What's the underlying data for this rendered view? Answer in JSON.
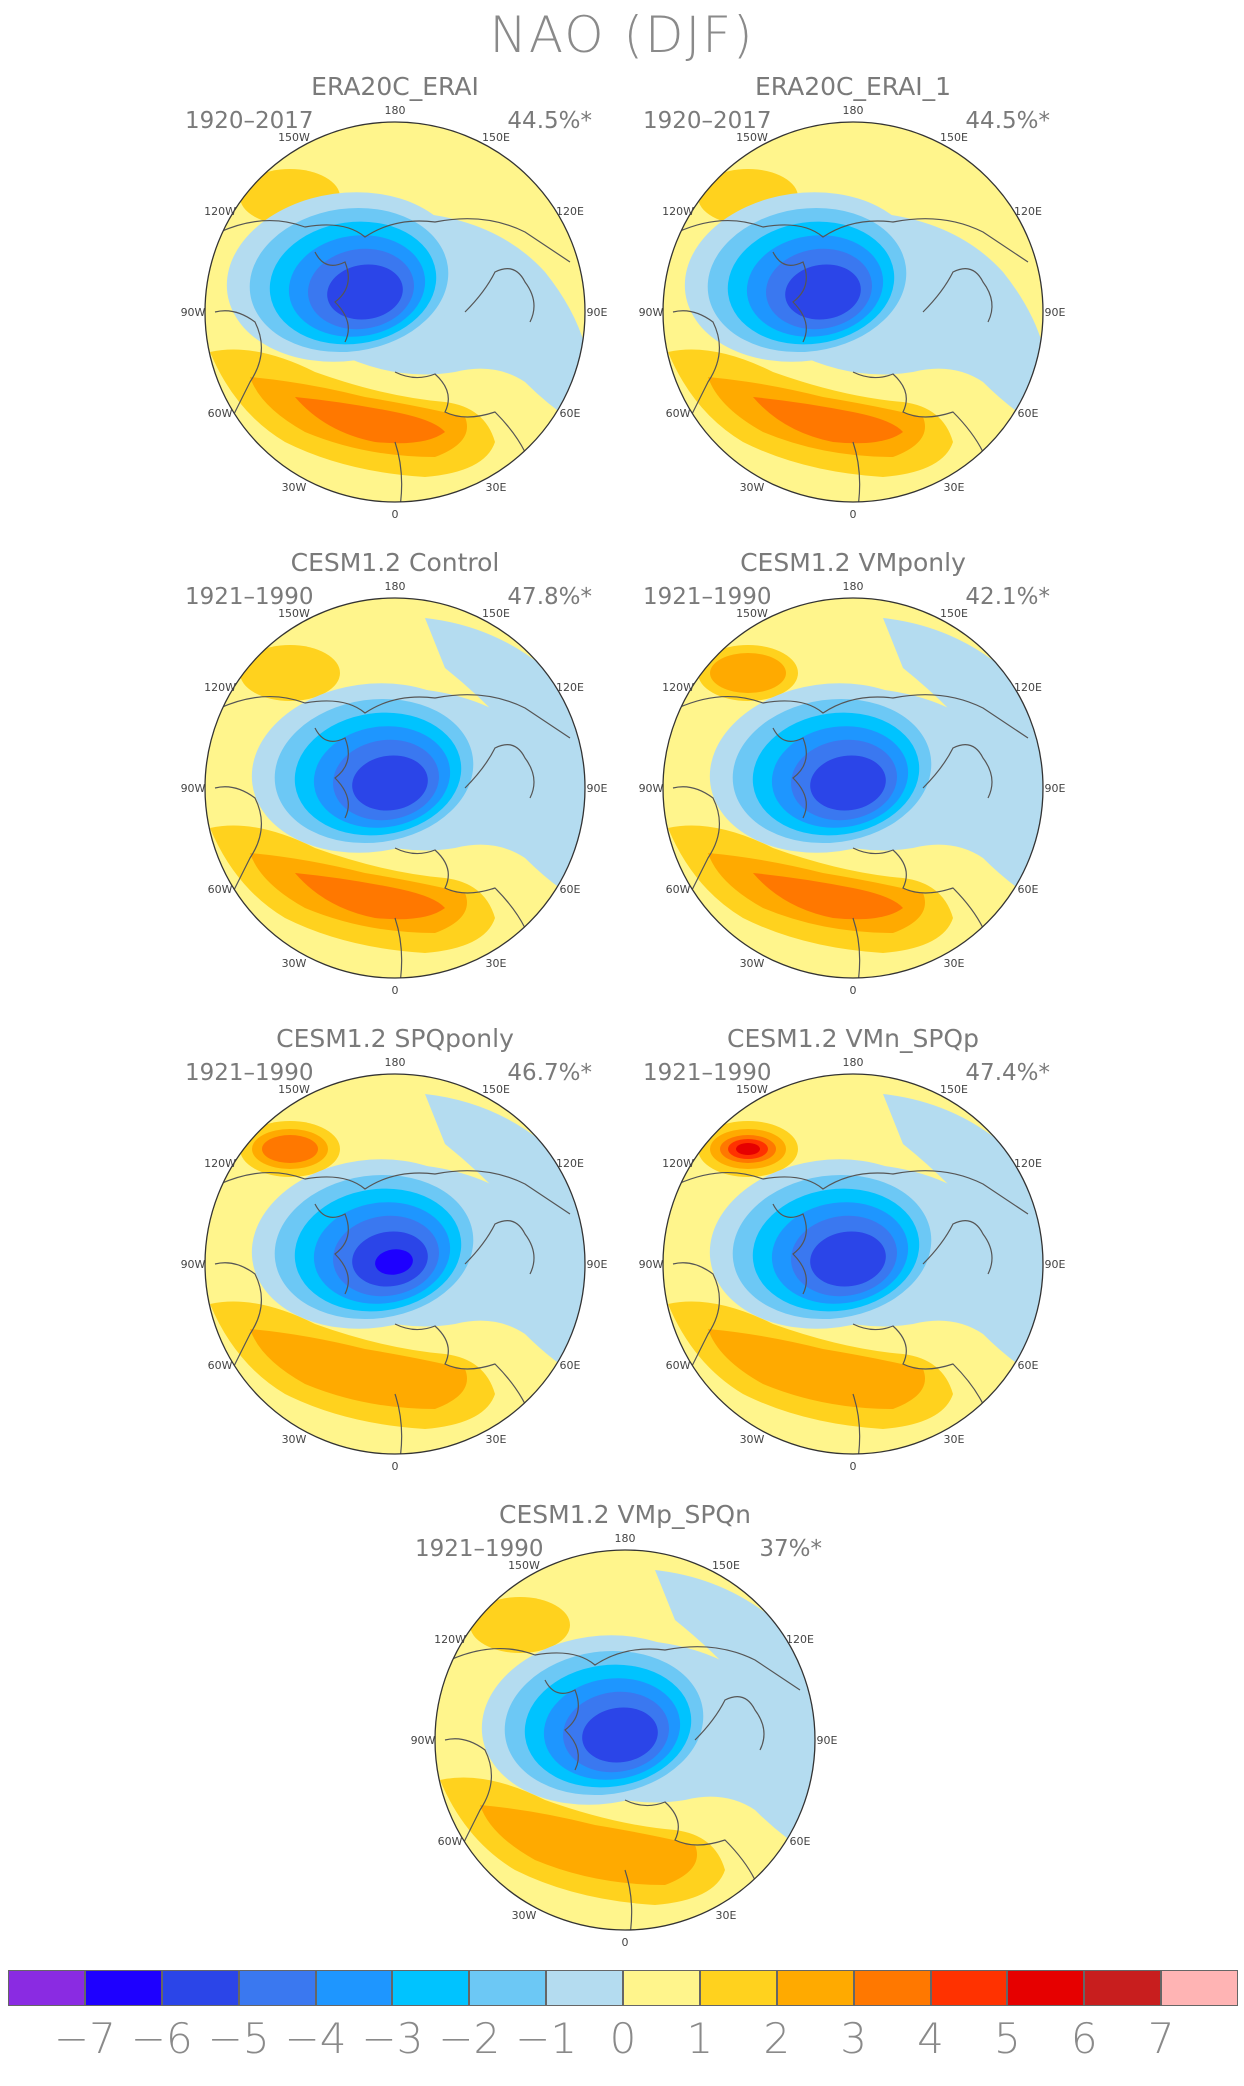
{
  "title": "NAO (DJF)",
  "lon_labels": {
    "l180": "180",
    "l150w": "150W",
    "l150e": "150E",
    "l120w": "120W",
    "l120e": "120E",
    "l90w": "90W",
    "l90e": "90E",
    "l60w": "60W",
    "l60e": "60E",
    "l30w": "30W",
    "l30e": "30E",
    "l0": "0"
  },
  "panels": [
    {
      "title": "ERA20C_ERAI",
      "years": "1920–2017",
      "pct": "44.5%*",
      "pos_strength": 3,
      "neg_strength": 6,
      "pacific_pos": 1,
      "variant": "era"
    },
    {
      "title": "ERA20C_ERAI_1",
      "years": "1920–2017",
      "pct": "44.5%*",
      "pos_strength": 3,
      "neg_strength": 6,
      "pacific_pos": 1,
      "variant": "era"
    },
    {
      "title": "CESM1.2 Control",
      "years": "1921–1990",
      "pct": "47.8%*",
      "pos_strength": 3,
      "neg_strength": 6,
      "pacific_pos": 1,
      "variant": "ctrl"
    },
    {
      "title": "CESM1.2 VMponly",
      "years": "1921–1990",
      "pct": "42.1%*",
      "pos_strength": 3,
      "neg_strength": 6,
      "pacific_pos": 2,
      "variant": "ctrl"
    },
    {
      "title": "CESM1.2 SPQponly",
      "years": "1921–1990",
      "pct": "46.7%*",
      "pos_strength": 2,
      "neg_strength": 7,
      "pacific_pos": 3,
      "variant": "spq"
    },
    {
      "title": "CESM1.2 VMn_SPQp",
      "years": "1921–1990",
      "pct": "47.4%*",
      "pos_strength": 2,
      "neg_strength": 6,
      "pacific_pos": 5,
      "variant": "spq"
    },
    {
      "title": "CESM1.2 VMp_SPQn",
      "years": "1921–1990",
      "pct": "37%*",
      "pos_strength": 2,
      "neg_strength": 6,
      "pacific_pos": 1,
      "variant": "ctrl"
    }
  ],
  "colorbar": {
    "colors": [
      "#8a2be2",
      "#1e00ff",
      "#2b45e8",
      "#3a78f0",
      "#1e96ff",
      "#00c3ff",
      "#6cc8f5",
      "#b4dcf0",
      "#fff58c",
      "#ffd21e",
      "#ffaa00",
      "#ff7800",
      "#ff3200",
      "#e60000",
      "#c81e1e",
      "#ffb4b4"
    ],
    "ticks": [
      "−7",
      "−6",
      "−5",
      "−4",
      "−3",
      "−2",
      "−1",
      "0",
      "1",
      "2",
      "3",
      "4",
      "5",
      "6",
      "7"
    ]
  },
  "palette": {
    "neg": [
      "#b4dcf0",
      "#6cc8f5",
      "#00c3ff",
      "#1e96ff",
      "#3a78f0",
      "#2b45e8",
      "#1e00ff"
    ],
    "pos": [
      "#fff58c",
      "#ffd21e",
      "#ffaa00",
      "#ff7800",
      "#ff3200",
      "#e60000"
    ],
    "land": "#555555"
  }
}
